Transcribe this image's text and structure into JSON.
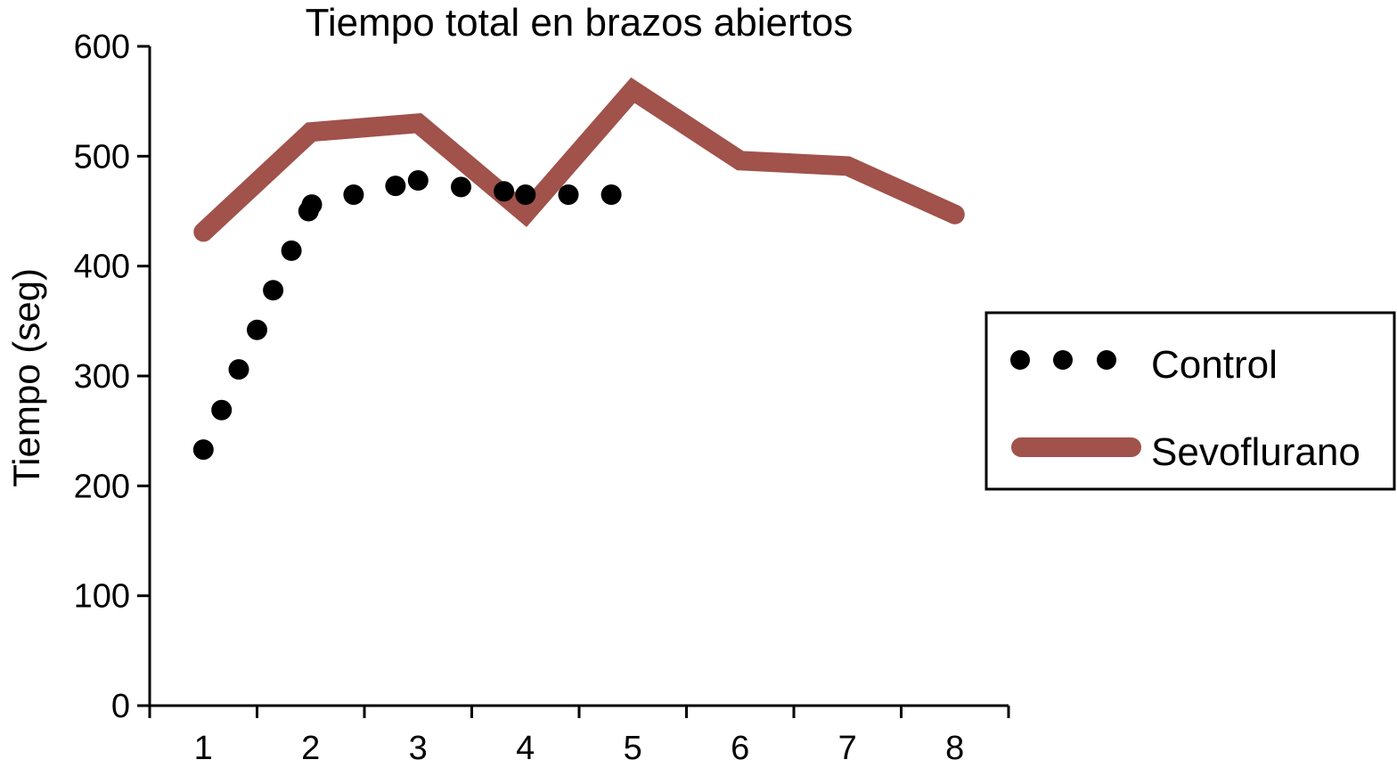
{
  "chart_data": {
    "type": "line",
    "title": "Tiempo total en brazos abiertos",
    "ylabel": "Tiempo (seg)",
    "xlabel": "",
    "xlim": [
      0.5,
      8.5
    ],
    "ylim": [
      0,
      600
    ],
    "x_ticks": [
      "1",
      "2",
      "3",
      "4",
      "5",
      "6",
      "7",
      "8"
    ],
    "y_ticks": [
      0,
      100,
      200,
      300,
      400,
      500,
      600
    ],
    "legend_position": "right",
    "grid": false,
    "series": [
      {
        "name": "Control",
        "style": "dots",
        "color": "#000000",
        "x": [
          1,
          1.17,
          1.33,
          1.5,
          1.65,
          1.82,
          1.98,
          2.01,
          2.4,
          2.79,
          3.0,
          3.4,
          3.8,
          4.0,
          4.4,
          4.8
        ],
        "y": [
          233,
          269,
          306,
          342,
          378,
          414,
          450,
          456,
          465,
          473,
          478,
          472,
          468,
          465,
          465,
          465
        ]
      },
      {
        "name": "Sevoflurano",
        "style": "line",
        "color": "#a0524b",
        "x": [
          1,
          2,
          3,
          4,
          5,
          6,
          7,
          8
        ],
        "y": [
          431,
          522,
          530,
          448,
          560,
          496,
          491,
          447
        ]
      }
    ]
  }
}
